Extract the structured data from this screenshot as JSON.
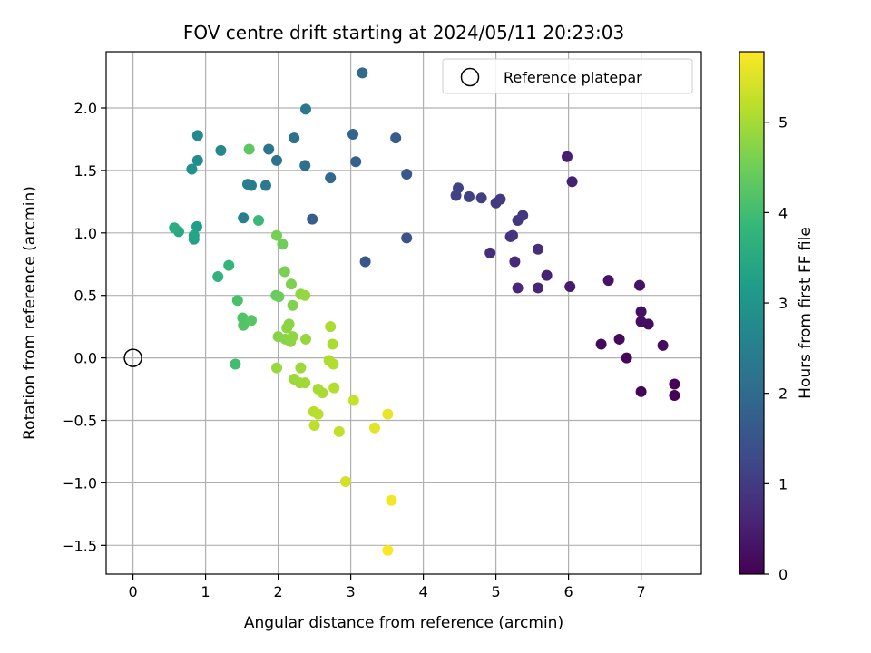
{
  "chart_data": {
    "type": "scatter",
    "title": "FOV centre drift starting at 2024/05/11 20:23:03",
    "xlabel": "Angular distance from reference (arcmin)",
    "ylabel": "Rotation from reference (arcmin)",
    "xlim": [
      -0.37,
      7.83
    ],
    "ylim": [
      -1.73,
      2.45
    ],
    "xticks": [
      0,
      1,
      2,
      3,
      4,
      5,
      6,
      7
    ],
    "yticks": [
      -1.5,
      -1.0,
      -0.5,
      0.0,
      0.5,
      1.0,
      1.5,
      2.0
    ],
    "xtick_labels": [
      "0",
      "1",
      "2",
      "3",
      "4",
      "5",
      "6",
      "7"
    ],
    "ytick_labels": [
      "−1.5",
      "−1.0",
      "−0.5",
      "0.0",
      "0.5",
      "1.0",
      "1.5",
      "2.0"
    ],
    "grid": true,
    "legend": {
      "position": "top-right",
      "entries": [
        "Reference platepar"
      ]
    },
    "reference_point": {
      "x": 0,
      "y": 0,
      "marker": "open-circle"
    },
    "colorbar": {
      "label": "Hours from first FF file",
      "range": [
        0,
        5.78
      ],
      "ticks": [
        0,
        1,
        2,
        3,
        4,
        5
      ],
      "tick_labels": [
        "0",
        "1",
        "2",
        "3",
        "4",
        "5"
      ],
      "colormap": "viridis"
    },
    "colormap_stops": [
      "#440154",
      "#482878",
      "#3e4a89",
      "#31688e",
      "#26828e",
      "#1f9e89",
      "#35b779",
      "#6ece58",
      "#b5de2b",
      "#fde725"
    ],
    "points": [
      [
        7.46,
        -0.3,
        0.03
      ],
      [
        7.46,
        -0.21,
        0.05
      ],
      [
        7.0,
        -0.27,
        0.08
      ],
      [
        6.8,
        0.0,
        0.1
      ],
      [
        6.45,
        0.11,
        0.13
      ],
      [
        6.7,
        0.15,
        0.15
      ],
      [
        7.3,
        0.1,
        0.17
      ],
      [
        7.1,
        0.27,
        0.2
      ],
      [
        7.0,
        0.29,
        0.22
      ],
      [
        7.0,
        0.37,
        0.25
      ],
      [
        6.98,
        0.58,
        0.28
      ],
      [
        6.55,
        0.62,
        0.32
      ],
      [
        6.02,
        0.57,
        0.45
      ],
      [
        5.7,
        0.66,
        0.55
      ],
      [
        5.58,
        0.56,
        0.6
      ],
      [
        5.3,
        0.56,
        0.65
      ],
      [
        5.26,
        0.77,
        0.7
      ],
      [
        5.58,
        0.87,
        0.75
      ],
      [
        4.92,
        0.84,
        0.8
      ],
      [
        5.2,
        0.97,
        0.85
      ],
      [
        5.23,
        0.98,
        0.88
      ],
      [
        5.3,
        1.1,
        0.92
      ],
      [
        5.37,
        1.14,
        0.95
      ],
      [
        5.0,
        1.24,
        0.98
      ],
      [
        5.06,
        1.27,
        1.0
      ],
      [
        4.8,
        1.28,
        1.05
      ],
      [
        4.63,
        1.29,
        1.1
      ],
      [
        4.45,
        1.3,
        1.12
      ],
      [
        4.48,
        1.36,
        1.15
      ],
      [
        5.98,
        1.61,
        0.5
      ],
      [
        6.05,
        1.41,
        0.52
      ],
      [
        3.77,
        0.96,
        1.5
      ],
      [
        3.2,
        0.77,
        1.55
      ],
      [
        3.77,
        1.47,
        1.6
      ],
      [
        3.62,
        1.76,
        1.65
      ],
      [
        3.07,
        1.57,
        1.8
      ],
      [
        3.03,
        1.79,
        1.85
      ],
      [
        3.16,
        2.28,
        2.0
      ],
      [
        2.47,
        1.11,
        1.7
      ],
      [
        2.72,
        1.44,
        1.9
      ],
      [
        2.37,
        1.54,
        2.1
      ],
      [
        2.22,
        1.76,
        2.15
      ],
      [
        2.38,
        1.99,
        2.3
      ],
      [
        1.98,
        1.58,
        2.2
      ],
      [
        1.87,
        1.67,
        2.25
      ],
      [
        1.83,
        1.38,
        2.35
      ],
      [
        1.63,
        1.38,
        2.4
      ],
      [
        1.58,
        1.39,
        2.45
      ],
      [
        1.52,
        1.12,
        2.5
      ],
      [
        0.89,
        1.78,
        2.75
      ],
      [
        1.21,
        1.66,
        2.7
      ],
      [
        0.89,
        1.58,
        2.8
      ],
      [
        0.81,
        1.51,
        2.9
      ],
      [
        0.88,
        1.05,
        3.2
      ],
      [
        0.84,
        0.95,
        3.3
      ],
      [
        0.84,
        0.98,
        3.4
      ],
      [
        0.63,
        1.01,
        3.5
      ],
      [
        0.57,
        1.04,
        3.6
      ],
      [
        1.17,
        0.65,
        3.7
      ],
      [
        1.32,
        0.74,
        3.8
      ],
      [
        1.73,
        1.1,
        3.9
      ],
      [
        1.41,
        -0.05,
        4.0
      ],
      [
        1.44,
        0.46,
        4.1
      ],
      [
        1.51,
        0.32,
        4.15
      ],
      [
        1.52,
        0.26,
        4.2
      ],
      [
        1.63,
        0.3,
        4.25
      ],
      [
        1.6,
        1.67,
        4.3
      ],
      [
        1.97,
        0.5,
        4.4
      ],
      [
        2.01,
        0.49,
        4.45
      ],
      [
        2.06,
        0.91,
        4.5
      ],
      [
        1.98,
        0.98,
        4.55
      ],
      [
        2.09,
        0.69,
        4.6
      ],
      [
        2.18,
        0.59,
        4.62
      ],
      [
        2.2,
        0.42,
        4.65
      ],
      [
        2.0,
        0.17,
        4.7
      ],
      [
        2.1,
        0.15,
        4.72
      ],
      [
        2.12,
        0.24,
        4.74
      ],
      [
        2.15,
        0.27,
        4.76
      ],
      [
        2.17,
        0.13,
        4.78
      ],
      [
        2.2,
        0.17,
        4.8
      ],
      [
        2.31,
        0.51,
        4.82
      ],
      [
        2.37,
        0.5,
        4.84
      ],
      [
        2.38,
        0.15,
        4.86
      ],
      [
        1.98,
        -0.08,
        4.88
      ],
      [
        2.22,
        -0.17,
        4.9
      ],
      [
        2.3,
        -0.2,
        4.92
      ],
      [
        2.31,
        -0.08,
        4.94
      ],
      [
        2.37,
        -0.2,
        4.96
      ],
      [
        2.55,
        -0.25,
        5.0
      ],
      [
        2.61,
        -0.28,
        5.02
      ],
      [
        2.72,
        0.25,
        5.04
      ],
      [
        2.75,
        0.11,
        5.06
      ],
      [
        2.7,
        -0.02,
        5.08
      ],
      [
        2.76,
        -0.05,
        5.1
      ],
      [
        2.77,
        -0.24,
        5.12
      ],
      [
        2.49,
        -0.43,
        5.15
      ],
      [
        2.55,
        -0.45,
        5.18
      ],
      [
        2.5,
        -0.54,
        5.2
      ],
      [
        2.84,
        -0.59,
        5.25
      ],
      [
        3.04,
        -0.34,
        5.3
      ],
      [
        2.93,
        -0.99,
        5.4
      ],
      [
        3.33,
        -0.56,
        5.55
      ],
      [
        3.51,
        -0.45,
        5.6
      ],
      [
        3.56,
        -1.14,
        5.7
      ],
      [
        3.51,
        -1.54,
        5.75
      ]
    ]
  }
}
